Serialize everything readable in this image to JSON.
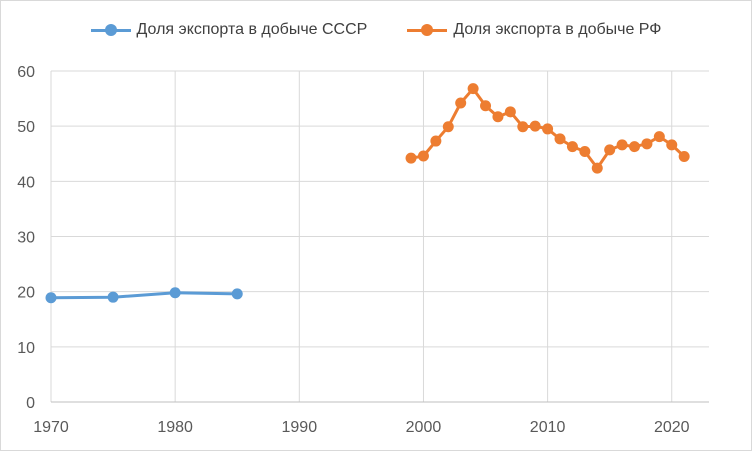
{
  "chart_data": {
    "type": "line",
    "xlim": [
      1970,
      2023
    ],
    "ylim": [
      0,
      60
    ],
    "x_ticks": [
      1970,
      1980,
      1990,
      2000,
      2010,
      2020
    ],
    "y_ticks": [
      0,
      10,
      20,
      30,
      40,
      50,
      60
    ],
    "grid": true,
    "legend_position": "top",
    "series": [
      {
        "name": "Доля экспорта в добыче СССР",
        "color": "#5B9BD5",
        "x": [
          1970,
          1975,
          1980,
          1985
        ],
        "y": [
          18.9,
          19.0,
          19.8,
          19.6
        ]
      },
      {
        "name": "Доля экспорта в добыче РФ",
        "color": "#ED7D31",
        "x": [
          1999,
          2000,
          2001,
          2002,
          2003,
          2004,
          2005,
          2006,
          2007,
          2008,
          2009,
          2010,
          2011,
          2012,
          2013,
          2014,
          2015,
          2016,
          2017,
          2018,
          2019,
          2020,
          2021
        ],
        "y": [
          44.2,
          44.6,
          47.3,
          49.9,
          54.2,
          56.8,
          53.7,
          51.7,
          52.6,
          49.9,
          50.0,
          49.5,
          47.7,
          46.3,
          45.4,
          42.4,
          45.7,
          46.6,
          46.3,
          46.8,
          48.1,
          46.6,
          44.5
        ]
      }
    ]
  }
}
